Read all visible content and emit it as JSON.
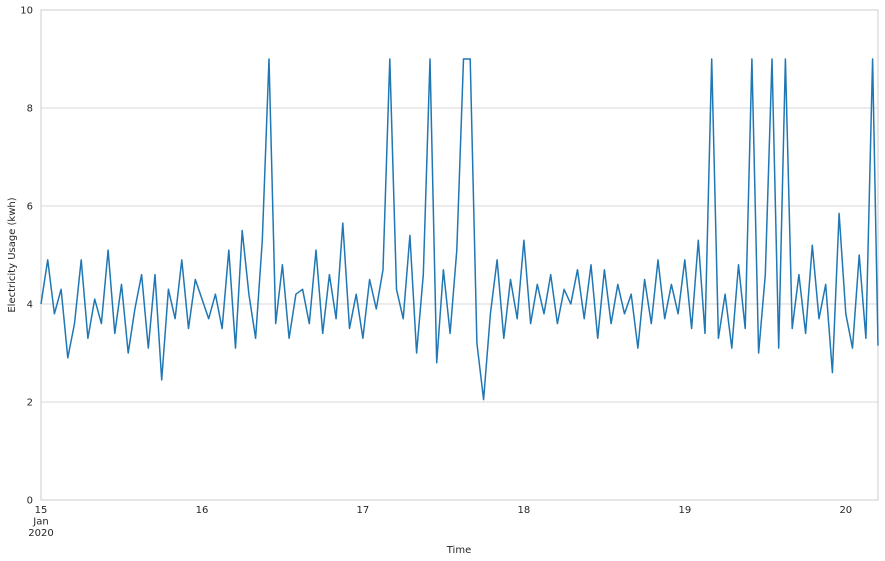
{
  "chart_data": {
    "type": "line",
    "title": "",
    "xlabel": "Time",
    "ylabel": "Electricity Usage (kwh)",
    "ylim": [
      0,
      10
    ],
    "xlim": [
      "2020-01-15 00:00",
      "2020-01-20 04:48"
    ],
    "grid": "horizontal",
    "line_color": "#1f77b4",
    "yticks": [
      "0",
      "2",
      "4",
      "6",
      "8",
      "10"
    ],
    "xticks": [
      {
        "at": "2020-01-15",
        "label": [
          "15",
          "Jan",
          "2020"
        ]
      },
      {
        "at": "2020-01-16",
        "label": [
          "16"
        ]
      },
      {
        "at": "2020-01-17",
        "label": [
          "17"
        ]
      },
      {
        "at": "2020-01-18",
        "label": [
          "18"
        ]
      },
      {
        "at": "2020-01-19",
        "label": [
          "19"
        ]
      },
      {
        "at": "2020-01-20",
        "label": [
          "20"
        ]
      }
    ],
    "x": [
      "2020-01-15 00:00",
      "2020-01-15 01:00",
      "2020-01-15 02:00",
      "2020-01-15 03:00",
      "2020-01-15 04:00",
      "2020-01-15 05:00",
      "2020-01-15 06:00",
      "2020-01-15 07:00",
      "2020-01-15 08:00",
      "2020-01-15 09:00",
      "2020-01-15 10:00",
      "2020-01-15 11:00",
      "2020-01-15 12:00",
      "2020-01-15 13:00",
      "2020-01-15 14:00",
      "2020-01-15 15:00",
      "2020-01-15 16:00",
      "2020-01-15 17:00",
      "2020-01-15 18:00",
      "2020-01-15 19:00",
      "2020-01-15 20:00",
      "2020-01-15 21:00",
      "2020-01-15 22:00",
      "2020-01-15 23:00",
      "2020-01-16 00:00",
      "2020-01-16 01:00",
      "2020-01-16 02:00",
      "2020-01-16 03:00",
      "2020-01-16 04:00",
      "2020-01-16 05:00",
      "2020-01-16 06:00",
      "2020-01-16 07:00",
      "2020-01-16 08:00",
      "2020-01-16 09:00",
      "2020-01-16 10:00",
      "2020-01-16 11:00",
      "2020-01-16 12:00",
      "2020-01-16 13:00",
      "2020-01-16 14:00",
      "2020-01-16 15:00",
      "2020-01-16 16:00",
      "2020-01-16 17:00",
      "2020-01-16 18:00",
      "2020-01-16 19:00",
      "2020-01-16 20:00",
      "2020-01-16 21:00",
      "2020-01-16 22:00",
      "2020-01-16 23:00",
      "2020-01-17 00:00",
      "2020-01-17 01:00",
      "2020-01-17 02:00",
      "2020-01-17 03:00",
      "2020-01-17 04:00",
      "2020-01-17 05:00",
      "2020-01-17 06:00",
      "2020-01-17 07:00",
      "2020-01-17 08:00",
      "2020-01-17 09:00",
      "2020-01-17 10:00",
      "2020-01-17 11:00",
      "2020-01-17 12:00",
      "2020-01-17 13:00",
      "2020-01-17 14:00",
      "2020-01-17 15:00",
      "2020-01-17 16:00",
      "2020-01-17 17:00",
      "2020-01-17 18:00",
      "2020-01-17 19:00",
      "2020-01-17 20:00",
      "2020-01-17 21:00",
      "2020-01-17 22:00",
      "2020-01-17 23:00",
      "2020-01-18 00:00",
      "2020-01-18 01:00",
      "2020-01-18 02:00",
      "2020-01-18 03:00",
      "2020-01-18 04:00",
      "2020-01-18 05:00",
      "2020-01-18 06:00",
      "2020-01-18 07:00",
      "2020-01-18 08:00",
      "2020-01-18 09:00",
      "2020-01-18 10:00",
      "2020-01-18 11:00",
      "2020-01-18 12:00",
      "2020-01-18 13:00",
      "2020-01-18 14:00",
      "2020-01-18 15:00",
      "2020-01-18 16:00",
      "2020-01-18 17:00",
      "2020-01-18 18:00",
      "2020-01-18 19:00",
      "2020-01-18 20:00",
      "2020-01-18 21:00",
      "2020-01-18 22:00",
      "2020-01-18 23:00",
      "2020-01-19 00:00",
      "2020-01-19 01:00",
      "2020-01-19 02:00",
      "2020-01-19 03:00",
      "2020-01-19 04:00",
      "2020-01-19 05:00",
      "2020-01-19 06:00",
      "2020-01-19 07:00",
      "2020-01-19 08:00",
      "2020-01-19 09:00",
      "2020-01-19 10:00",
      "2020-01-19 11:00",
      "2020-01-19 12:00",
      "2020-01-19 13:00",
      "2020-01-19 14:00",
      "2020-01-19 15:00",
      "2020-01-19 16:00",
      "2020-01-19 17:00",
      "2020-01-19 18:00",
      "2020-01-19 19:00",
      "2020-01-19 20:00",
      "2020-01-19 21:00",
      "2020-01-19 22:00",
      "2020-01-19 23:00",
      "2020-01-20 00:00",
      "2020-01-20 01:00",
      "2020-01-20 02:00",
      "2020-01-20 03:00",
      "2020-01-20 04:00",
      "2020-01-20 04:48"
    ],
    "values": [
      4.0,
      4.9,
      3.8,
      4.3,
      2.9,
      3.6,
      4.9,
      3.3,
      4.1,
      3.6,
      5.1,
      3.4,
      4.4,
      3.0,
      3.9,
      4.6,
      3.1,
      4.6,
      2.45,
      4.3,
      3.7,
      4.9,
      3.5,
      4.5,
      4.1,
      3.7,
      4.2,
      3.5,
      5.1,
      3.1,
      5.5,
      4.2,
      3.3,
      5.3,
      9.0,
      3.6,
      4.8,
      3.3,
      4.2,
      4.3,
      3.6,
      5.1,
      3.4,
      4.6,
      3.7,
      5.65,
      3.5,
      4.2,
      3.3,
      4.5,
      3.9,
      4.7,
      9.0,
      4.3,
      3.7,
      5.4,
      3.0,
      4.6,
      9.0,
      2.8,
      4.7,
      3.4,
      5.1,
      9.0,
      9.0,
      3.2,
      2.05,
      3.8,
      4.9,
      3.3,
      4.5,
      3.7,
      5.3,
      3.6,
      4.4,
      3.8,
      4.6,
      3.6,
      4.3,
      4.0,
      4.7,
      3.7,
      4.8,
      3.3,
      4.7,
      3.6,
      4.4,
      3.8,
      4.2,
      3.1,
      4.5,
      3.6,
      4.9,
      3.7,
      4.4,
      3.8,
      4.9,
      3.5,
      5.3,
      3.4,
      9.0,
      3.3,
      4.2,
      3.1,
      4.8,
      3.5,
      9.0,
      3.0,
      4.6,
      9.0,
      3.1,
      9.0,
      3.5,
      4.6,
      3.4,
      5.2,
      3.7,
      4.4,
      2.6,
      5.85,
      3.8,
      3.1,
      5.0,
      3.3,
      9.0,
      3.15
    ]
  }
}
